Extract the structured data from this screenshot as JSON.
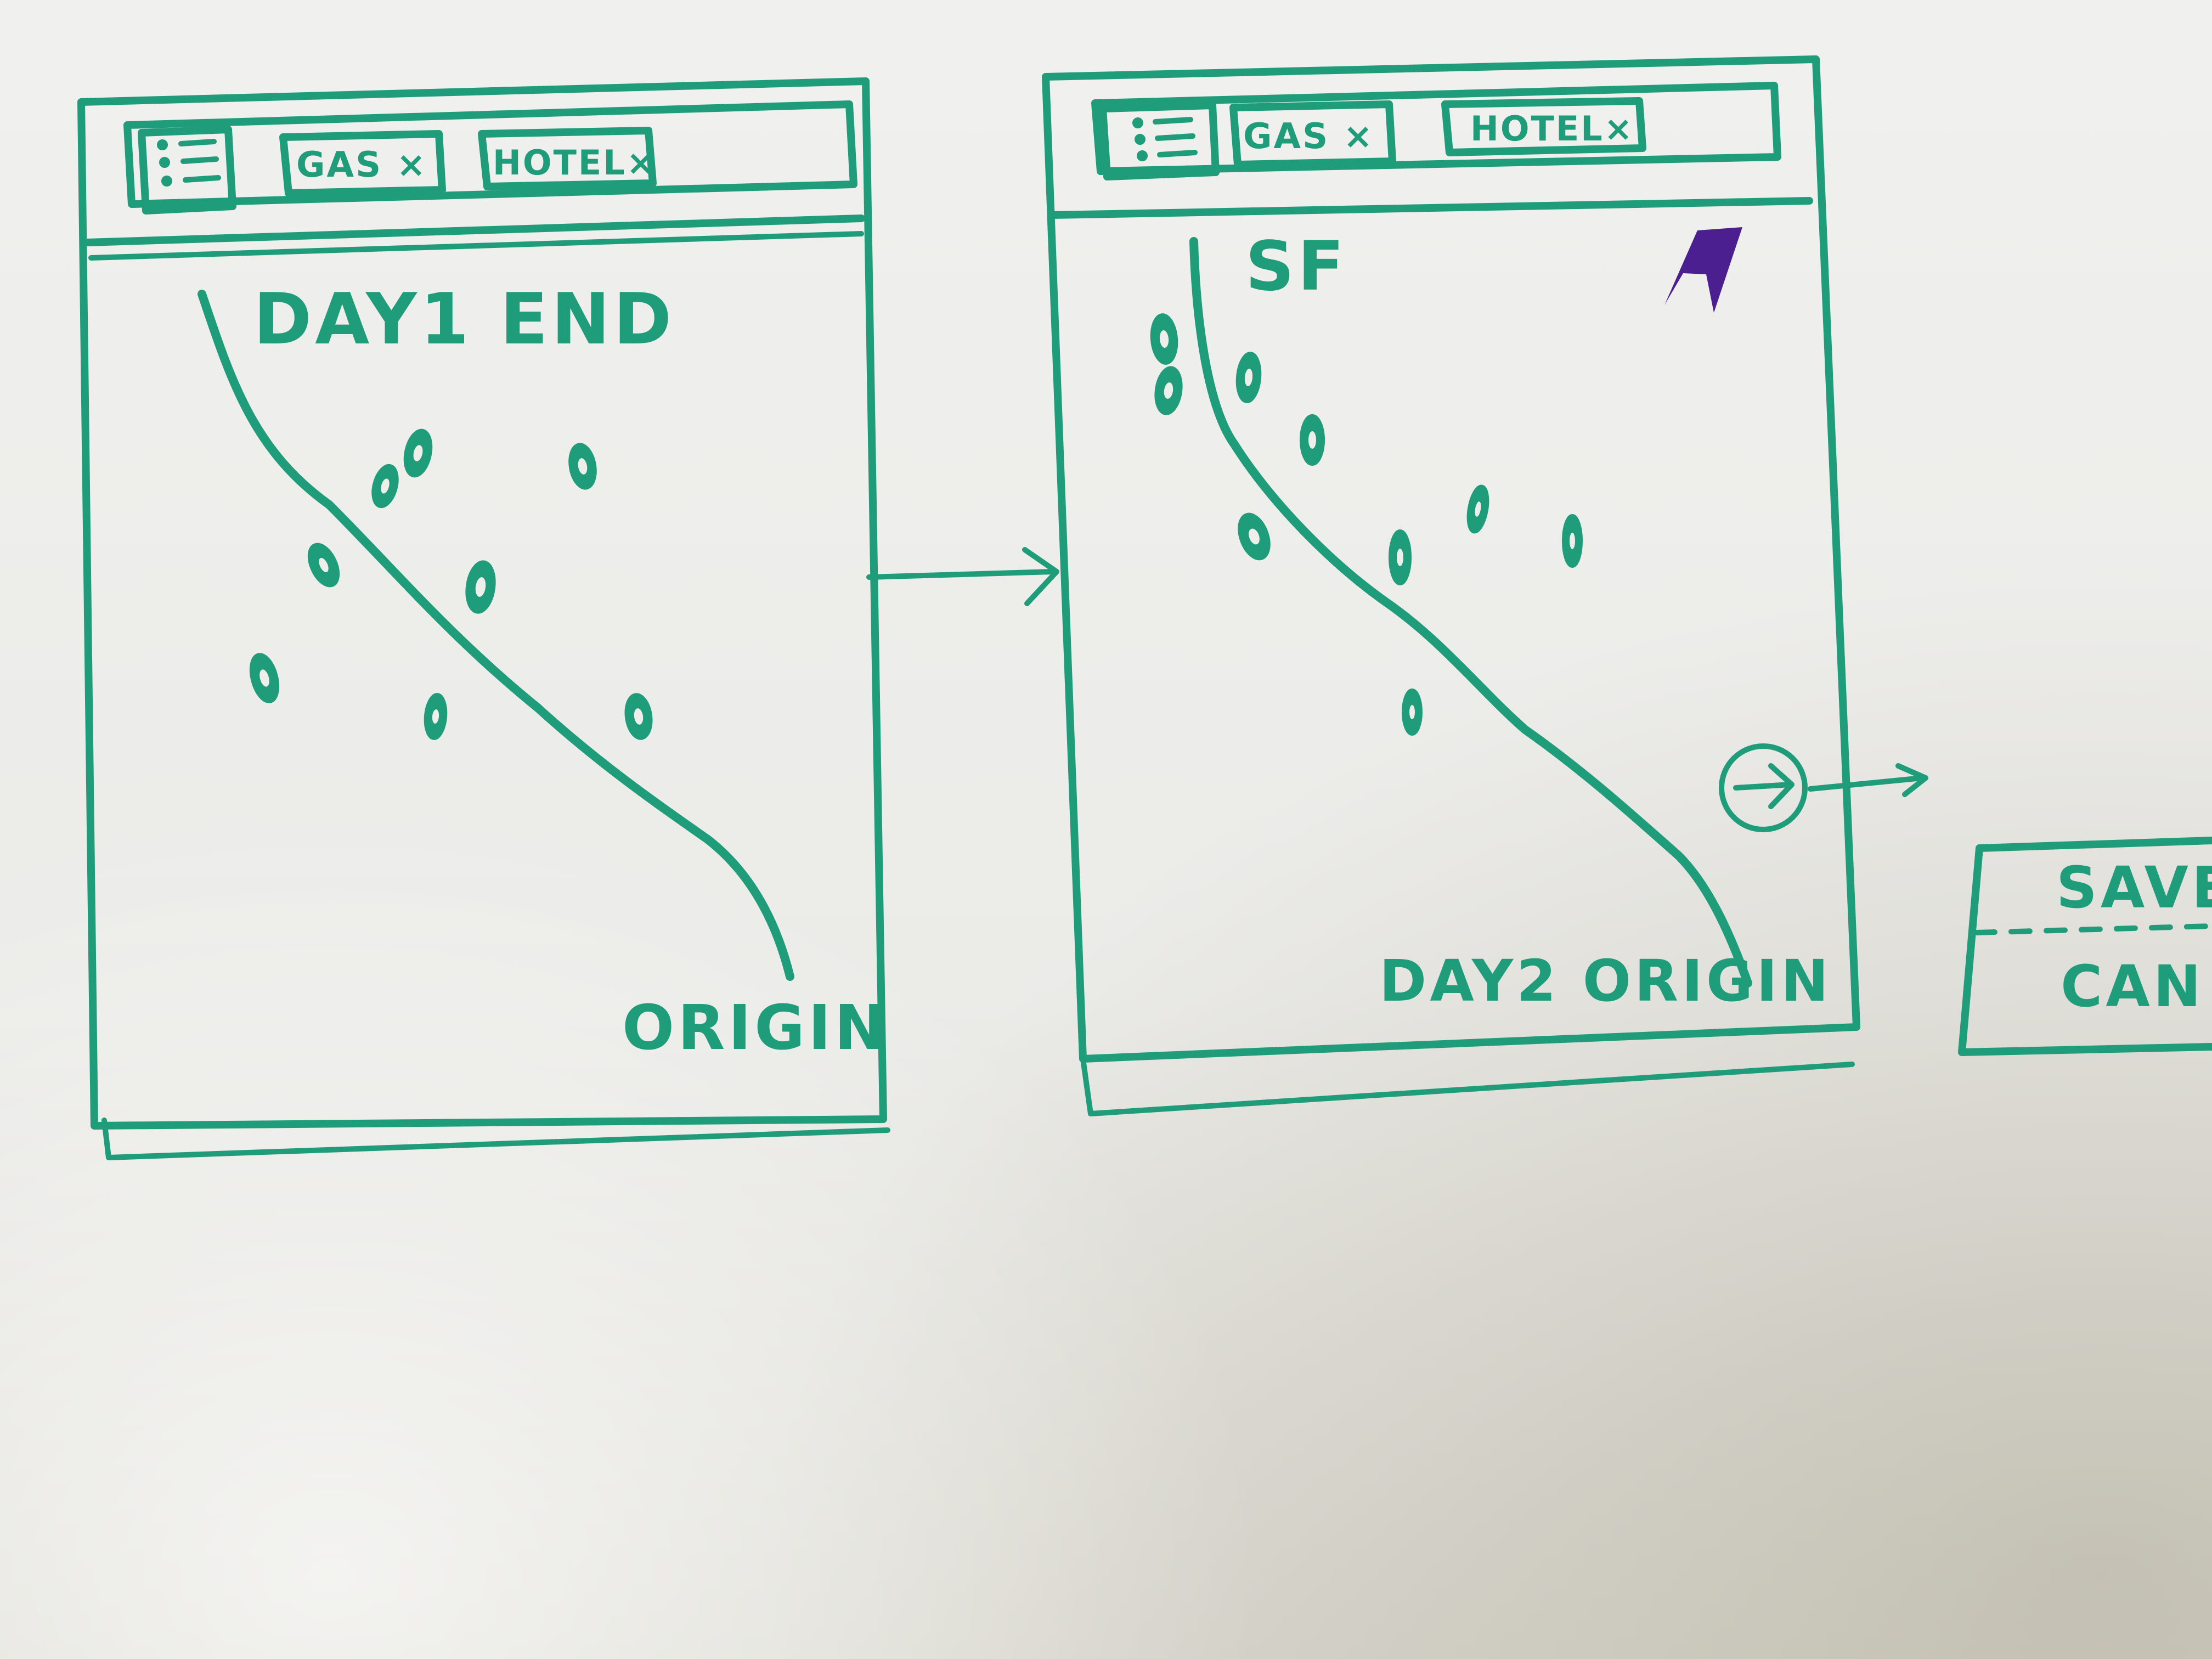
{
  "screen1": {
    "tabs": {
      "gas": "GAS ×",
      "hotel": "HOTEL×"
    },
    "end_label": "DAY1 END",
    "origin_label": "ORIGIN"
  },
  "screen2": {
    "tabs": {
      "gas": "GAS ×",
      "hotel": "HOTEL×"
    },
    "city_label": "SF",
    "origin_label": "DAY2 ORIGIN"
  },
  "dialog": {
    "save_label": "SAVE",
    "cancel_label": "CAN"
  },
  "icons": {
    "menu": "menu-list-icon",
    "pin": "map-pin-icon",
    "next": "arrow-right-circle-icon",
    "compass": "north-arrow-icon"
  },
  "colors": {
    "marker": "#1f9c7a",
    "accent_marker": "#4b1f8f",
    "board": "#eeeeeb"
  }
}
